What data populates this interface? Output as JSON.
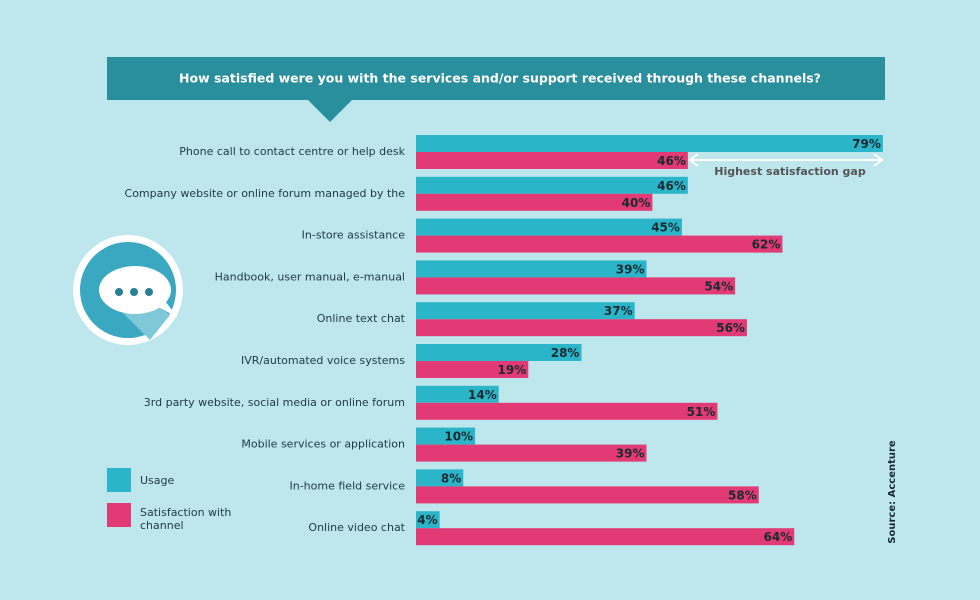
{
  "chart_data": {
    "type": "bar",
    "orientation": "horizontal",
    "title": "How satisfied were you with the services and/or support received through these channels?",
    "categories": [
      "Phone call to contact centre or help desk",
      "Company website or online forum managed by the",
      "In-store assistance",
      "Handbook, user manual, e-manual",
      "Online text chat",
      "IVR/automated voice systems",
      "3rd party website, social media or online forum",
      "Mobile services or application",
      "In-home field service",
      "Online video chat"
    ],
    "series": [
      {
        "name": "Usage",
        "color": "#2bb5c9",
        "values": [
          79,
          46,
          45,
          39,
          37,
          28,
          14,
          10,
          8,
          4
        ],
        "value_labels": [
          "79%",
          "46%",
          "45%",
          "39%",
          "37%",
          "28%",
          "14%",
          "10%",
          "8%",
          "4%"
        ]
      },
      {
        "name": "Satisfaction with channel",
        "color": "#e23a74",
        "values": [
          46,
          40,
          62,
          54,
          56,
          19,
          51,
          39,
          58,
          64
        ],
        "value_labels": [
          "46%",
          "40%",
          "62%",
          "54%",
          "56%",
          "19%",
          "51%",
          "39%",
          "58%",
          "64%"
        ]
      }
    ],
    "annotation": "Highest satisfaction gap",
    "source": "Source: Accenture"
  }
}
